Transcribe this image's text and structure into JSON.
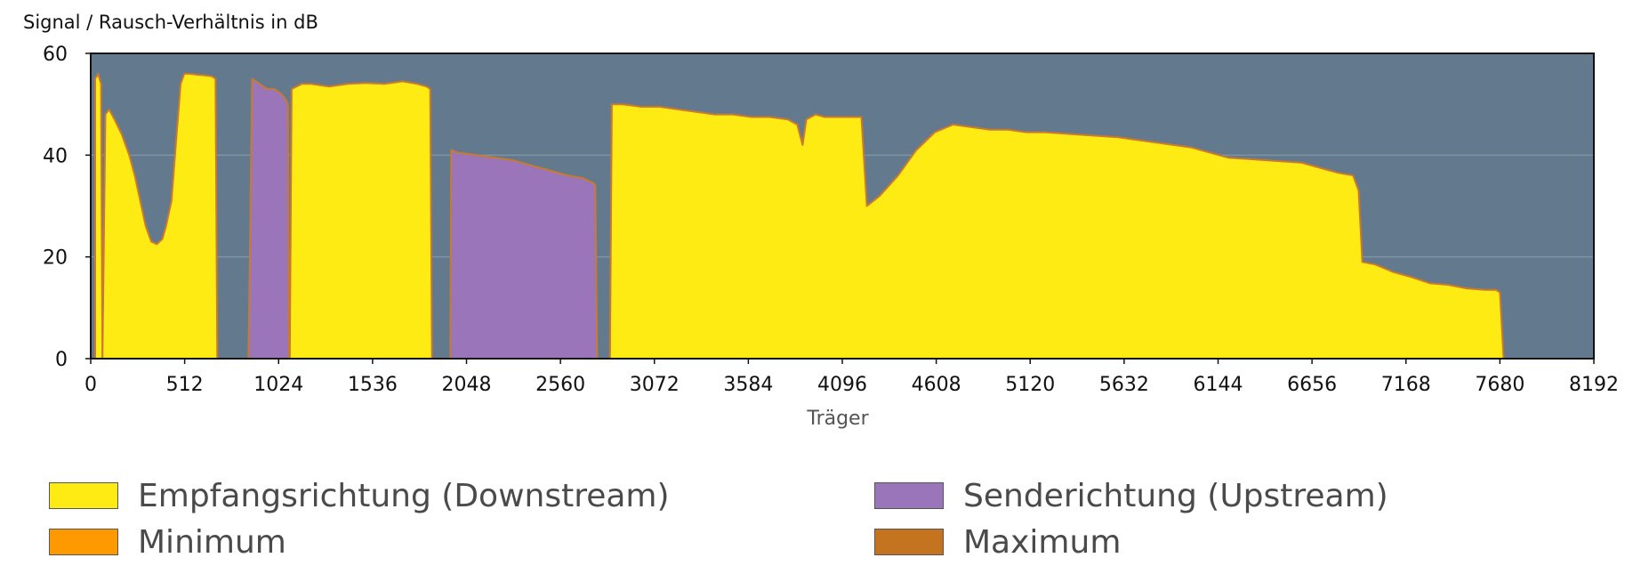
{
  "chart_data": {
    "type": "area",
    "ylabel": "Signal / Rausch-Verhältnis in dB",
    "xlabel": "Träger",
    "xlim": [
      0,
      8192
    ],
    "ylim": [
      0,
      60
    ],
    "x_ticks": [
      0,
      512,
      1024,
      1536,
      2048,
      2560,
      3072,
      3584,
      4096,
      4608,
      5120,
      5632,
      6144,
      6656,
      7168,
      7680,
      8192
    ],
    "y_ticks": [
      0,
      20,
      40,
      60
    ],
    "grid": true,
    "legend_position": "bottom",
    "colors": {
      "plot_background": "#637a8e",
      "grid": "#7f93a4",
      "downstream": "#ffeb14",
      "upstream": "#9b75ba",
      "minimum": "#ff9900",
      "maximum": "#c4741f",
      "outline": "#c97a30"
    },
    "series": [
      {
        "name": "Empfangsrichtung (Downstream)",
        "color": "#ffeb14",
        "segments": [
          [
            [
              24,
              0
            ],
            [
              24,
              55
            ],
            [
              40,
              56
            ],
            [
              56,
              54
            ],
            [
              64,
              0
            ]
          ],
          [
            [
              64,
              0
            ],
            [
              80,
              48
            ],
            [
              100,
              49
            ],
            [
              130,
              47
            ],
            [
              170,
              44
            ],
            [
              210,
              40
            ],
            [
              240,
              36
            ],
            [
              270,
              31
            ],
            [
              300,
              26
            ],
            [
              330,
              23
            ],
            [
              360,
              22.5
            ],
            [
              390,
              23.5
            ],
            [
              410,
              26
            ],
            [
              440,
              31
            ],
            [
              470,
              45
            ],
            [
              490,
              54
            ],
            [
              510,
              56
            ],
            [
              540,
              56
            ],
            [
              580,
              55.8
            ],
            [
              620,
              55.7
            ],
            [
              660,
              55.5
            ],
            [
              680,
              55
            ],
            [
              690,
              0
            ]
          ],
          [
            [
              1085,
              0
            ],
            [
              1095,
              53
            ],
            [
              1150,
              54
            ],
            [
              1200,
              54
            ],
            [
              1300,
              53.5
            ],
            [
              1400,
              54
            ],
            [
              1500,
              54.2
            ],
            [
              1600,
              54
            ],
            [
              1700,
              54.5
            ],
            [
              1780,
              54
            ],
            [
              1830,
              53.5
            ],
            [
              1850,
              53
            ],
            [
              1860,
              0
            ]
          ],
          [
            [
              2830,
              0
            ],
            [
              2840,
              50
            ],
            [
              2900,
              50
            ],
            [
              3000,
              49.5
            ],
            [
              3100,
              49.5
            ],
            [
              3200,
              49
            ],
            [
              3300,
              48.5
            ],
            [
              3400,
              48
            ],
            [
              3500,
              48
            ],
            [
              3600,
              47.5
            ],
            [
              3700,
              47.5
            ],
            [
              3800,
              47
            ],
            [
              3850,
              46
            ],
            [
              3880,
              42
            ],
            [
              3900,
              47
            ],
            [
              3950,
              48
            ],
            [
              4000,
              47.5
            ],
            [
              4080,
              47.5
            ],
            [
              4150,
              47.5
            ],
            [
              4200,
              47.5
            ],
            [
              4230,
              30
            ],
            [
              4300,
              32
            ],
            [
              4400,
              36
            ],
            [
              4500,
              41
            ],
            [
              4600,
              44.5
            ],
            [
              4700,
              46
            ],
            [
              4800,
              45.5
            ],
            [
              4900,
              45
            ],
            [
              5000,
              45
            ],
            [
              5100,
              44.5
            ],
            [
              5200,
              44.5
            ],
            [
              5400,
              44
            ],
            [
              5600,
              43.5
            ],
            [
              5800,
              42.5
            ],
            [
              6000,
              41.5
            ],
            [
              6100,
              40.5
            ],
            [
              6200,
              39.5
            ],
            [
              6400,
              39
            ],
            [
              6600,
              38.5
            ],
            [
              6700,
              37.5
            ],
            [
              6800,
              36.5
            ],
            [
              6880,
              36
            ],
            [
              6910,
              33
            ],
            [
              6930,
              19
            ],
            [
              7000,
              18.5
            ],
            [
              7100,
              17
            ],
            [
              7200,
              16
            ],
            [
              7300,
              14.8
            ],
            [
              7400,
              14.5
            ],
            [
              7500,
              13.8
            ],
            [
              7600,
              13.5
            ],
            [
              7660,
              13.5
            ],
            [
              7680,
              13
            ],
            [
              7700,
              0
            ]
          ]
        ]
      },
      {
        "name": "Senderichtung (Upstream)",
        "color": "#9b75ba",
        "segments": [
          [
            [
              860,
              0
            ],
            [
              880,
              55
            ],
            [
              920,
              54
            ],
            [
              960,
              53
            ],
            [
              1000,
              53
            ],
            [
              1040,
              52
            ],
            [
              1060,
              51
            ],
            [
              1075,
              50
            ],
            [
              1080,
              0
            ]
          ],
          [
            [
              1960,
              0
            ],
            [
              1965,
              41
            ],
            [
              2000,
              40.5
            ],
            [
              2100,
              40
            ],
            [
              2200,
              39.5
            ],
            [
              2300,
              39
            ],
            [
              2400,
              38
            ],
            [
              2500,
              37
            ],
            [
              2600,
              36
            ],
            [
              2680,
              35.5
            ],
            [
              2740,
              34.5
            ],
            [
              2750,
              34
            ],
            [
              2760,
              0
            ]
          ]
        ]
      },
      {
        "name": "Minimum",
        "color": "#ff9900"
      },
      {
        "name": "Maximum",
        "color": "#c4741f"
      }
    ]
  },
  "legend": {
    "items": [
      {
        "label": "Empfangsrichtung (Downstream)",
        "color": "#ffeb14"
      },
      {
        "label": "Senderichtung (Upstream)",
        "color": "#9b75ba"
      },
      {
        "label": "Minimum",
        "color": "#ff9900"
      },
      {
        "label": "Maximum",
        "color": "#c4741f"
      }
    ]
  }
}
